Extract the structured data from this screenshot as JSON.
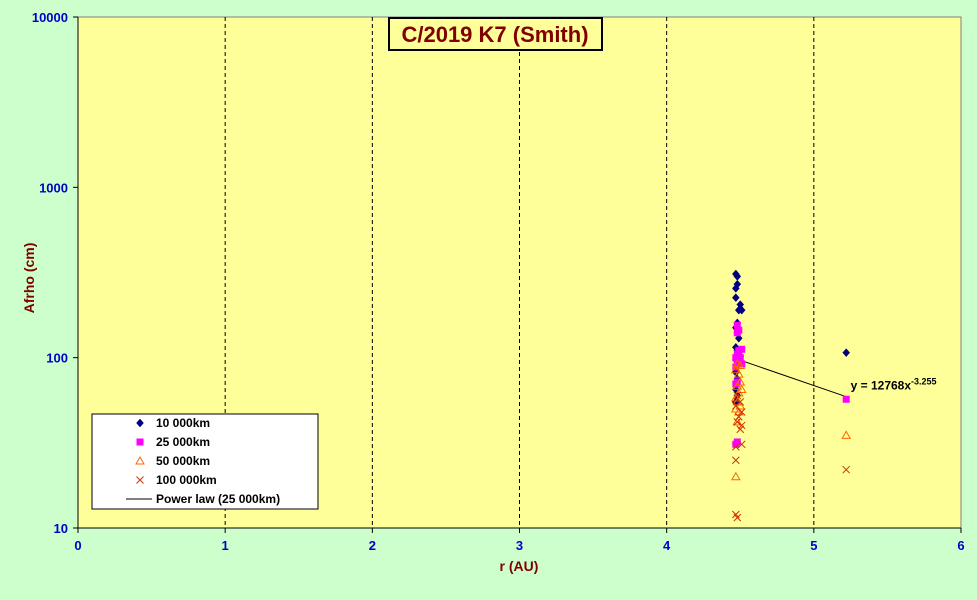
{
  "chart_data": {
    "type": "scatter",
    "title": "C/2019 K7 (Smith)",
    "xlabel": "r (AU)",
    "ylabel": "Afrho (cm)",
    "xlim": [
      0,
      6
    ],
    "ylim": [
      10,
      10000
    ],
    "yscale": "log",
    "x_ticks": [
      "0",
      "1",
      "2",
      "3",
      "4",
      "5",
      "6"
    ],
    "y_ticks": [
      "10",
      "100",
      "1000",
      "10000"
    ],
    "legend_position": "bottom-left",
    "colors": {
      "plot_bg": "#ffff99",
      "page_bg": "#ccffcc",
      "tick_color": "#0000cc",
      "label_color": "#800000"
    },
    "series": [
      {
        "name": "10 000km",
        "marker": "diamond",
        "color": "#000080",
        "points": [
          [
            4.47,
            310
          ],
          [
            4.48,
            300
          ],
          [
            4.48,
            270
          ],
          [
            4.47,
            255
          ],
          [
            4.47,
            225
          ],
          [
            4.5,
            205
          ],
          [
            4.49,
            190
          ],
          [
            4.51,
            190
          ],
          [
            4.48,
            160
          ],
          [
            4.47,
            150
          ],
          [
            4.48,
            140
          ],
          [
            4.49,
            130
          ],
          [
            4.47,
            115
          ],
          [
            4.48,
            110
          ],
          [
            4.5,
            102
          ],
          [
            4.47,
            97
          ],
          [
            4.48,
            90
          ],
          [
            4.47,
            82
          ],
          [
            4.48,
            75
          ],
          [
            4.47,
            65
          ],
          [
            4.48,
            60
          ],
          [
            4.47,
            55
          ],
          [
            5.22,
            107
          ]
        ]
      },
      {
        "name": "25 000km",
        "marker": "square",
        "color": "#ff00ff",
        "points": [
          [
            4.48,
            155
          ],
          [
            4.49,
            145
          ],
          [
            4.48,
            140
          ],
          [
            4.51,
            112
          ],
          [
            4.49,
            110
          ],
          [
            4.48,
            105
          ],
          [
            4.47,
            100
          ],
          [
            4.5,
            100
          ],
          [
            4.48,
            95
          ],
          [
            4.51,
            92
          ],
          [
            4.47,
            88
          ],
          [
            4.48,
            72
          ],
          [
            4.47,
            70
          ],
          [
            4.48,
            32
          ],
          [
            4.47,
            31
          ],
          [
            5.22,
            57
          ]
        ]
      },
      {
        "name": "50 000km",
        "marker": "triangle",
        "color": "#ff6600",
        "points": [
          [
            4.48,
            92
          ],
          [
            4.5,
            90
          ],
          [
            4.47,
            85
          ],
          [
            4.49,
            80
          ],
          [
            4.5,
            72
          ],
          [
            4.48,
            68
          ],
          [
            4.51,
            65
          ],
          [
            4.49,
            62
          ],
          [
            4.47,
            58
          ],
          [
            4.48,
            55
          ],
          [
            4.5,
            52
          ],
          [
            4.47,
            50
          ],
          [
            4.49,
            48
          ],
          [
            4.48,
            42
          ],
          [
            4.47,
            20
          ],
          [
            5.22,
            35
          ]
        ]
      },
      {
        "name": "100 000km",
        "marker": "x",
        "color": "#cc3300",
        "points": [
          [
            4.48,
            60
          ],
          [
            4.5,
            55
          ],
          [
            4.47,
            52
          ],
          [
            4.51,
            48
          ],
          [
            4.49,
            45
          ],
          [
            4.48,
            42
          ],
          [
            4.51,
            40
          ],
          [
            4.5,
            38
          ],
          [
            4.47,
            30
          ],
          [
            4.51,
            31
          ],
          [
            4.47,
            25
          ],
          [
            4.47,
            12
          ],
          [
            4.48,
            11.5
          ],
          [
            5.22,
            22
          ]
        ]
      },
      {
        "name": "Power law (25 000km)",
        "marker": "line",
        "color": "#000000",
        "points": [
          [
            4.48,
            98
          ],
          [
            5.22,
            59
          ]
        ]
      }
    ],
    "annotations": [
      {
        "text": "y = 12768x",
        "superscript": "-3.255",
        "x": 5.25,
        "y": 65
      }
    ]
  }
}
